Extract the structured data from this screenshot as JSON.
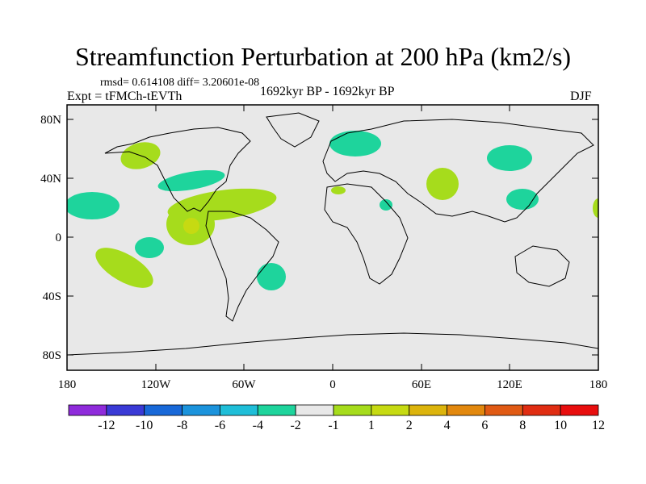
{
  "title": "Streamfunction Perturbation at 200 hPa (km2/s)",
  "stats": "rmsd= 0.614108 diff= 3.20601e-08",
  "experiment": "Expt = tFMCh-tEVTh",
  "period": "1692kyr BP - 1692kyr BP",
  "season": "DJF",
  "map": {
    "background_color": "#e8e8e8",
    "lat_labels": [
      "80N",
      "40N",
      "0",
      "40S",
      "80S"
    ],
    "lon_labels": [
      "180",
      "120W",
      "60W",
      "0",
      "60E",
      "120E",
      "180"
    ],
    "lon_range": [
      -180,
      180
    ],
    "lat_range": [
      -90,
      90
    ]
  },
  "anomalies": [
    {
      "name": "n-pacific-positive",
      "lon": -140,
      "lat": 52,
      "level": "1-2"
    },
    {
      "name": "n-america-negative",
      "lon": -95,
      "lat": 38,
      "level": "-2--1"
    },
    {
      "name": "n-atlantic-tropical-positive",
      "lon": -70,
      "lat": 20,
      "level": "1-2"
    },
    {
      "name": "central-america-core",
      "lon": -100,
      "lat": 8,
      "level": "2-4"
    },
    {
      "name": "e-pacific-negative",
      "lon": -160,
      "lat": 20,
      "level": "-2--1"
    },
    {
      "name": "tropical-pacific-negative",
      "lon": -130,
      "lat": -2,
      "level": "-2--1"
    },
    {
      "name": "s-pacific-positive",
      "lon": -135,
      "lat": -24,
      "level": "1-2"
    },
    {
      "name": "s-atlantic-negative",
      "lon": -45,
      "lat": -25,
      "level": "-2--1"
    },
    {
      "name": "n-europe-negative",
      "lon": 20,
      "lat": 63,
      "level": "-2--1"
    },
    {
      "name": "n-africa-positive",
      "lon": 5,
      "lat": 30,
      "level": "1-2"
    },
    {
      "name": "arabia-negative",
      "lon": 35,
      "lat": 20,
      "level": "-2--1"
    },
    {
      "name": "central-asia-positive",
      "lon": 70,
      "lat": 40,
      "level": "1-2"
    },
    {
      "name": "siberia-negative",
      "lon": 120,
      "lat": 52,
      "level": "-2--1"
    },
    {
      "name": "e-asia-negative",
      "lon": 125,
      "lat": 28,
      "level": "-2--1"
    },
    {
      "name": "w-pacific-positive",
      "lon": 178,
      "lat": 20,
      "level": "1-2"
    }
  ],
  "colorbar": {
    "colors": [
      "#8f2bdb",
      "#3a3ad6",
      "#1868d8",
      "#1b93dc",
      "#1fbed8",
      "#1ed49c",
      "#e8e8e8",
      "#a6dc1c",
      "#c6da12",
      "#dcb40c",
      "#e2880e",
      "#e05a14",
      "#e02d12",
      "#e80e0e"
    ],
    "labels": [
      "-12",
      "-10",
      "-8",
      "-6",
      "-4",
      "-2",
      "-1",
      "1",
      "2",
      "4",
      "6",
      "8",
      "10",
      "12"
    ]
  },
  "legend_colors": {
    "negative_weak": "#1ed49c",
    "positive_weak": "#a6dc1c",
    "positive_moderate": "#c6da12"
  }
}
